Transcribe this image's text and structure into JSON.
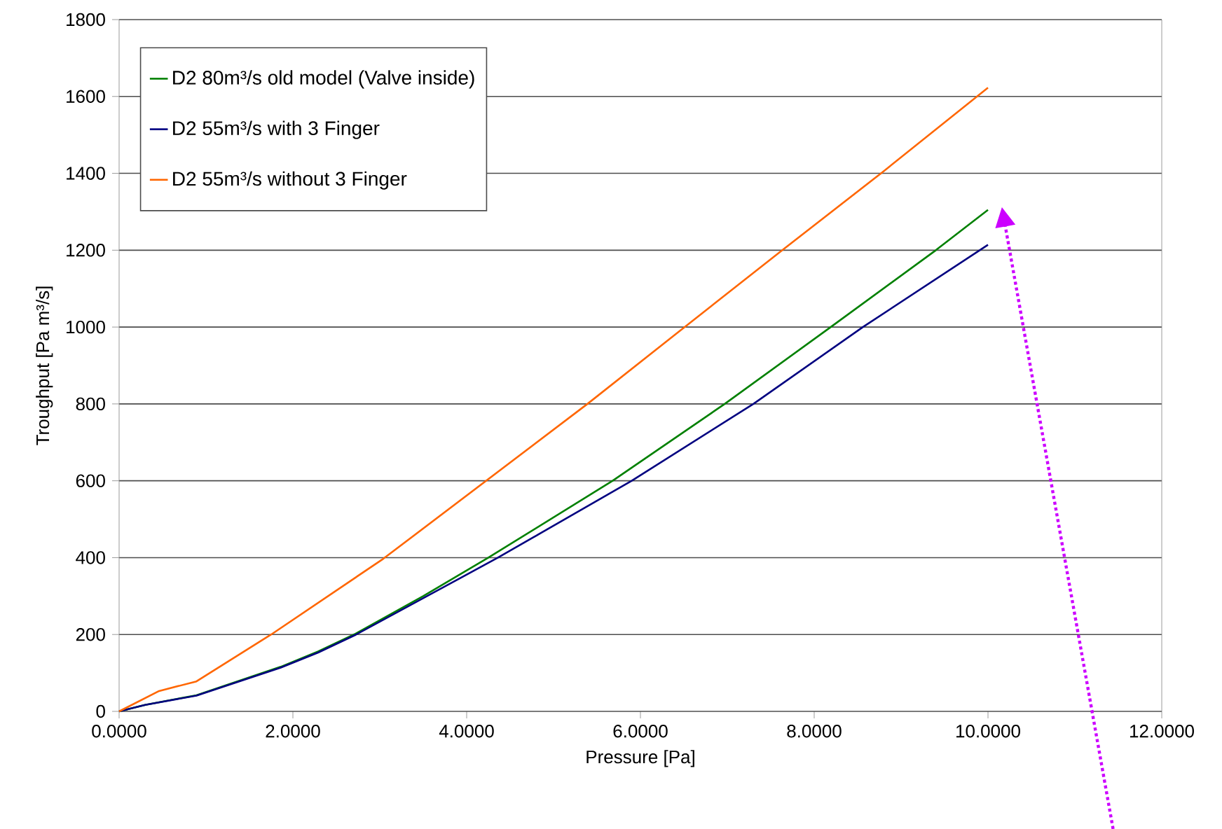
{
  "chart_data": {
    "type": "line",
    "xlabel": "Pressure [Pa]",
    "ylabel": "Troughput [Pa m³/s]",
    "xlim": [
      0,
      12
    ],
    "ylim": [
      0,
      1800
    ],
    "xticks": [
      {
        "value": 0,
        "label": "0.0000"
      },
      {
        "value": 2,
        "label": "2.0000"
      },
      {
        "value": 4,
        "label": "4.0000"
      },
      {
        "value": 6,
        "label": "6.0000"
      },
      {
        "value": 8,
        "label": "8.0000"
      },
      {
        "value": 10,
        "label": "10.0000"
      },
      {
        "value": 12,
        "label": "12.0000"
      }
    ],
    "yticks": [
      0,
      200,
      400,
      600,
      800,
      1000,
      1200,
      1400,
      1600,
      1800
    ],
    "grid": "y",
    "legend": "top left",
    "marker": "none",
    "line_style": "solid",
    "series": [
      {
        "name": "D2 80m³/s old model (Valve inside)",
        "color": "#008000",
        "x": [
          0,
          0.3,
          0.89,
          1.86,
          2.29,
          2.72,
          3.5,
          4.25,
          5.68,
          6.97,
          8.19,
          9.4,
          10
        ],
        "values": [
          0,
          17,
          42,
          116,
          156,
          202,
          300,
          400,
          600,
          800,
          1000,
          1200,
          1305
        ]
      },
      {
        "name": "D2 55m³/s with 3 Finger",
        "color": "#000080",
        "x": [
          0,
          0.3,
          0.89,
          1.86,
          2.29,
          2.72,
          3.96,
          4.36,
          5.9,
          7.3,
          8.56,
          10
        ],
        "values": [
          0,
          17,
          41,
          114,
          153,
          199,
          351,
          400,
          600,
          800,
          1000,
          1214
        ]
      },
      {
        "name": "D2 55m³/s without 3 Finger",
        "color": "#ff6600",
        "x": [
          0,
          0.46,
          0.89,
          1.75,
          3.04,
          5.39,
          6.38,
          7.62,
          8.78,
          10
        ],
        "values": [
          0,
          53,
          78,
          200,
          397,
          800,
          977,
          1198,
          1402,
          1623
        ]
      }
    ]
  }
}
